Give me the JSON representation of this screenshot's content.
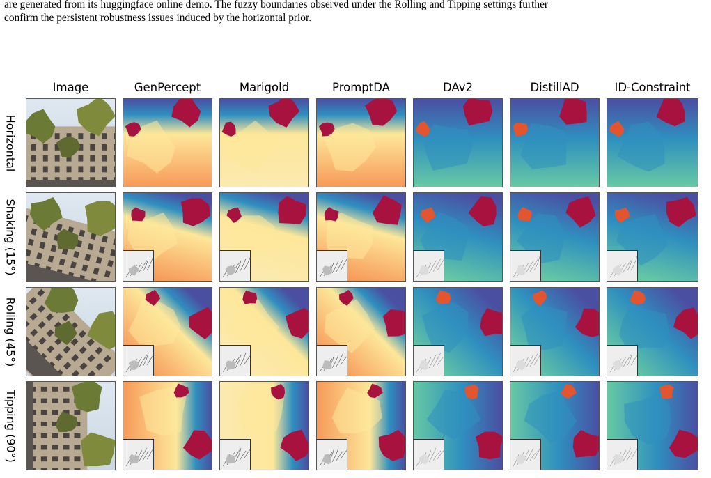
{
  "caption": {
    "line1": "are generated from its huggingface online demo. The fuzzy boundaries observed under the Rolling and Tipping settings further",
    "line2": "confirm the persistent robustness issues induced by the horizontal prior."
  },
  "figure": {
    "columns": [
      "Image",
      "GenPercept",
      "Marigold",
      "PromptDA",
      "DAv2",
      "DistillAD",
      "ID-Constraint"
    ],
    "rows": [
      "Horizontal",
      "Shaking (15°)",
      "Rolling (45°)",
      "Tipping (90°)"
    ],
    "colors": {
      "warm_far": "#fde79a",
      "warm_mid": "#f79a59",
      "near_red": "#a8123e",
      "cool_far": "#4b4fa2",
      "cool_mid": "#2f8fbf",
      "cool_near": "#67c9a3",
      "sky": "#c9d6e3",
      "tree": "#6b7a35",
      "building": "#b8a993"
    }
  }
}
